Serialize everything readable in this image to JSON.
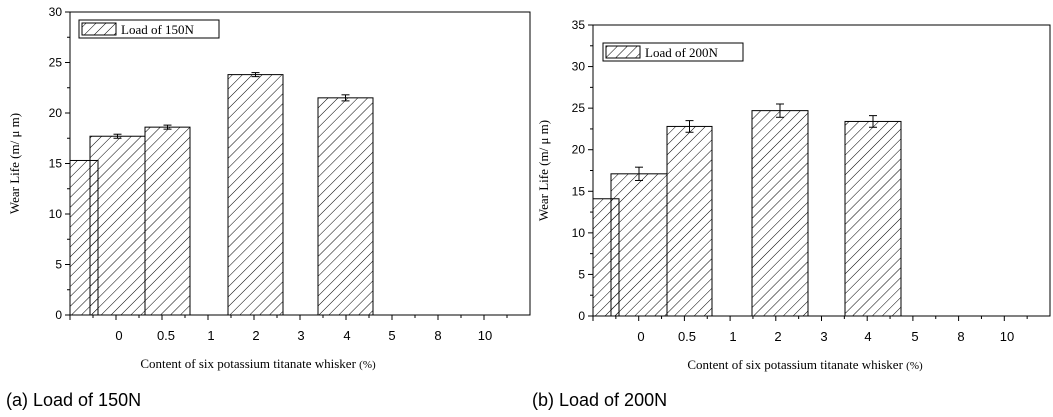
{
  "chart_data": [
    {
      "type": "bar",
      "categories": [
        "0",
        "0.5",
        "1",
        "2",
        "3",
        "4",
        "5",
        "8",
        "10"
      ],
      "series": [
        {
          "name": "Load of 150N",
          "values": [
            17.7,
            18.6,
            null,
            23.8,
            null,
            21.5,
            null,
            null,
            null
          ],
          "errors": [
            0.2,
            0.2,
            null,
            0.2,
            null,
            0.3,
            null,
            null,
            null
          ]
        }
      ],
      "partial_bar": {
        "value": 15.3
      },
      "ylabel": "Wear Life (m/ μ m)",
      "xlabel_main": "Content of six potassium titanate whisker",
      "xlabel_unit": "(%)",
      "ylim": [
        0,
        30
      ],
      "yticks": [
        "0",
        "5",
        "10",
        "15",
        "20",
        "25",
        "30"
      ],
      "legend": "Load of 150N",
      "legend_placement": "top-left",
      "grid": false
    },
    {
      "type": "bar",
      "categories": [
        "0",
        "0.5",
        "1",
        "2",
        "3",
        "4",
        "5",
        "8",
        "10"
      ],
      "series": [
        {
          "name": "Load of 200N",
          "values": [
            17.1,
            22.8,
            null,
            24.7,
            null,
            23.4,
            null,
            null,
            null
          ],
          "errors": [
            0.8,
            0.7,
            null,
            0.8,
            null,
            0.7,
            null,
            null,
            null
          ]
        }
      ],
      "partial_bar": {
        "value": 14.1
      },
      "ylabel": "Wear Life (m/ μ m)",
      "xlabel_main": "Content of six potassium titanate whisker",
      "xlabel_unit": "(%)",
      "ylim": [
        0,
        35
      ],
      "yticks": [
        "0",
        "5",
        "10",
        "15",
        "20",
        "25",
        "30",
        "35"
      ],
      "legend": "Load of 200N",
      "legend_placement": "top-left",
      "grid": false
    }
  ],
  "captions": [
    "(a) Load of 150N",
    "(b) Load of 200N"
  ]
}
